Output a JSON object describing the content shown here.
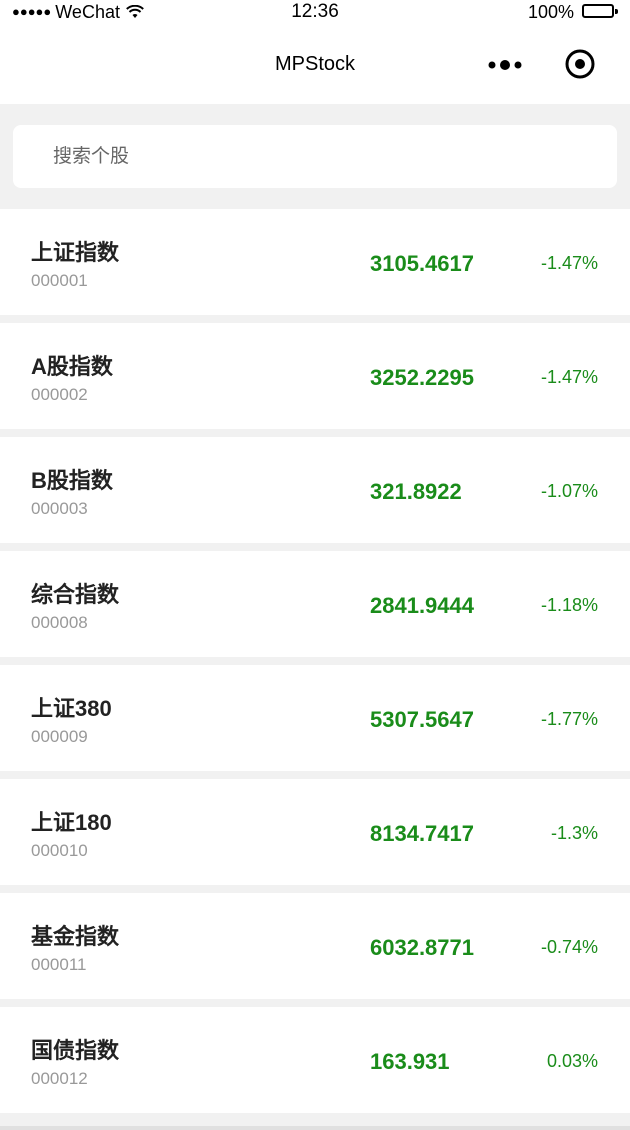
{
  "status": {
    "carrier": "WeChat",
    "time": "12:36",
    "battery": "100%"
  },
  "nav": {
    "title": "MPStock"
  },
  "search": {
    "placeholder": "搜索个股"
  },
  "colors": {
    "up_down_green": "#1a8c1a",
    "background": "#f1f1f1"
  },
  "stocks": [
    {
      "name": "上证指数",
      "code": "000001",
      "price": "3105.4617",
      "change": "-1.47%"
    },
    {
      "name": "A股指数",
      "code": "000002",
      "price": "3252.2295",
      "change": "-1.47%"
    },
    {
      "name": "B股指数",
      "code": "000003",
      "price": "321.8922",
      "change": "-1.07%"
    },
    {
      "name": "综合指数",
      "code": "000008",
      "price": "2841.9444",
      "change": "-1.18%"
    },
    {
      "name": "上证380",
      "code": "000009",
      "price": "5307.5647",
      "change": "-1.77%"
    },
    {
      "name": "上证180",
      "code": "000010",
      "price": "8134.7417",
      "change": "-1.3%"
    },
    {
      "name": "基金指数",
      "code": "000011",
      "price": "6032.8771",
      "change": "-0.74%"
    },
    {
      "name": "国债指数",
      "code": "000012",
      "price": "163.931",
      "change": "0.03%"
    }
  ]
}
